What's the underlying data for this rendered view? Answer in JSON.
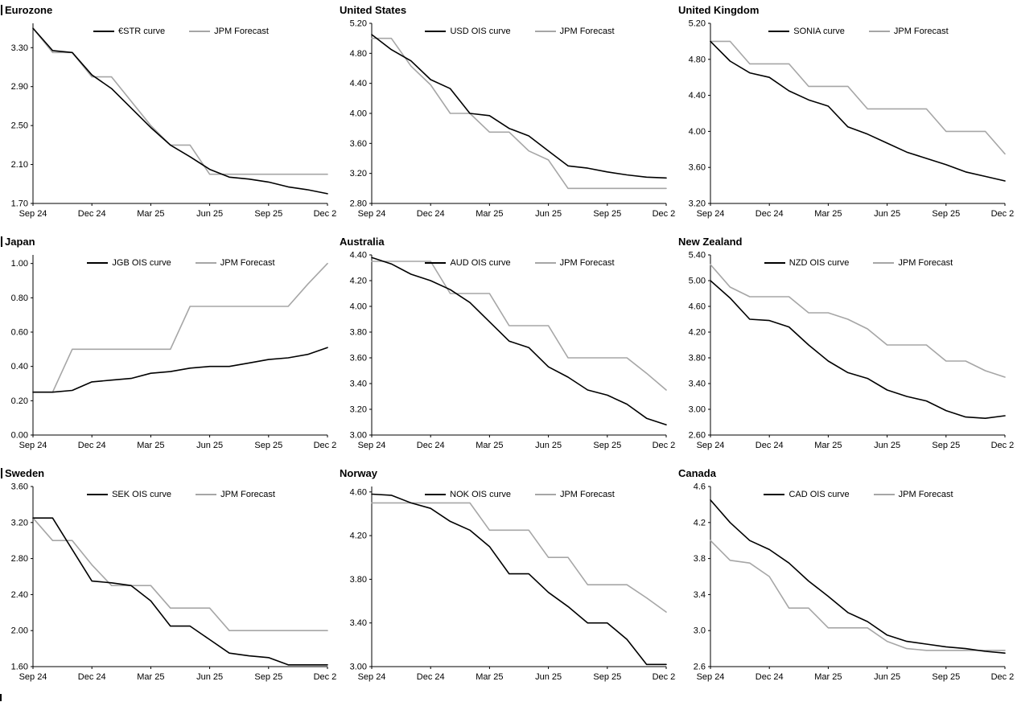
{
  "page": {
    "footer_marker": "|"
  },
  "chart_common": {
    "n_points": 16,
    "x_tick_labels": [
      "Sep 24",
      "Dec 24",
      "Mar 25",
      "Jun 25",
      "Sep 25",
      "Dec 25"
    ],
    "x_tick_indices": [
      0,
      3,
      6,
      9,
      12,
      15
    ],
    "colors": {
      "ois_curve": "#000000",
      "jpm_forecast": "#a6a6a6",
      "axis": "#000000"
    }
  },
  "chart_data": [
    {
      "type": "line",
      "title": "Eurozone",
      "title_bar": true,
      "ylim": [
        1.7,
        3.55
      ],
      "yticks": [
        1.7,
        2.1,
        2.5,
        2.9,
        3.3
      ],
      "ytick_decimals": 2,
      "legend_position": "top-center",
      "grid": false,
      "series": [
        {
          "name": "€STR curve",
          "color": "#000000",
          "values": [
            3.5,
            3.27,
            3.25,
            3.02,
            2.88,
            2.68,
            2.48,
            2.3,
            2.18,
            2.05,
            1.97,
            1.95,
            1.92,
            1.87,
            1.84,
            1.8
          ]
        },
        {
          "name": "JPM Forecast",
          "color": "#a6a6a6",
          "values": [
            3.5,
            3.25,
            3.25,
            3.0,
            3.0,
            2.75,
            2.5,
            2.3,
            2.3,
            2.0,
            2.0,
            2.0,
            2.0,
            2.0,
            2.0,
            2.0
          ]
        }
      ]
    },
    {
      "type": "line",
      "title": "United States",
      "title_bar": false,
      "ylim": [
        2.8,
        5.2
      ],
      "yticks": [
        2.8,
        3.2,
        3.6,
        4.0,
        4.4,
        4.8,
        5.2
      ],
      "ytick_decimals": 2,
      "legend_position": "top-center",
      "grid": false,
      "series": [
        {
          "name": "USD OIS curve",
          "color": "#000000",
          "values": [
            5.05,
            4.85,
            4.7,
            4.45,
            4.33,
            4.0,
            3.97,
            3.8,
            3.7,
            3.5,
            3.3,
            3.27,
            3.22,
            3.18,
            3.15,
            3.14
          ]
        },
        {
          "name": "JPM Forecast",
          "color": "#a6a6a6",
          "values": [
            5.0,
            5.0,
            4.63,
            4.38,
            4.0,
            4.0,
            3.75,
            3.75,
            3.5,
            3.38,
            3.0,
            3.0,
            3.0,
            3.0,
            3.0,
            3.0
          ]
        }
      ]
    },
    {
      "type": "line",
      "title": "United Kingdom",
      "title_bar": false,
      "ylim": [
        3.2,
        5.2
      ],
      "yticks": [
        3.2,
        3.6,
        4.0,
        4.4,
        4.8,
        5.2
      ],
      "ytick_decimals": 2,
      "legend_position": "top-center",
      "grid": false,
      "series": [
        {
          "name": "SONIA curve",
          "color": "#000000",
          "values": [
            5.0,
            4.78,
            4.65,
            4.6,
            4.45,
            4.35,
            4.28,
            4.05,
            3.97,
            3.87,
            3.77,
            3.7,
            3.63,
            3.55,
            3.5,
            3.45
          ]
        },
        {
          "name": "JPM Forecast",
          "color": "#a6a6a6",
          "values": [
            5.0,
            5.0,
            4.75,
            4.75,
            4.75,
            4.5,
            4.5,
            4.5,
            4.25,
            4.25,
            4.25,
            4.25,
            4.0,
            4.0,
            4.0,
            3.75
          ]
        }
      ]
    },
    {
      "type": "line",
      "title": "Japan",
      "title_bar": true,
      "ylim": [
        0.0,
        1.05
      ],
      "yticks": [
        0.0,
        0.2,
        0.4,
        0.6,
        0.8,
        1.0
      ],
      "ytick_decimals": 2,
      "legend_position": "top-center",
      "grid": false,
      "series": [
        {
          "name": "JGB OIS curve",
          "color": "#000000",
          "values": [
            0.25,
            0.25,
            0.26,
            0.31,
            0.32,
            0.33,
            0.36,
            0.37,
            0.39,
            0.4,
            0.4,
            0.42,
            0.44,
            0.45,
            0.47,
            0.51
          ]
        },
        {
          "name": "JPM Forecast",
          "color": "#a6a6a6",
          "values": [
            0.25,
            0.25,
            0.5,
            0.5,
            0.5,
            0.5,
            0.5,
            0.5,
            0.75,
            0.75,
            0.75,
            0.75,
            0.75,
            0.75,
            0.88,
            1.0
          ]
        }
      ]
    },
    {
      "type": "line",
      "title": "Australia",
      "title_bar": false,
      "ylim": [
        3.0,
        4.4
      ],
      "yticks": [
        3.0,
        3.2,
        3.4,
        3.6,
        3.8,
        4.0,
        4.2,
        4.4
      ],
      "ytick_decimals": 2,
      "legend_position": "top-center",
      "grid": false,
      "series": [
        {
          "name": "AUD OIS curve",
          "color": "#000000",
          "values": [
            4.38,
            4.33,
            4.25,
            4.2,
            4.13,
            4.03,
            3.88,
            3.73,
            3.68,
            3.53,
            3.45,
            3.35,
            3.31,
            3.24,
            3.13,
            3.08
          ]
        },
        {
          "name": "JPM Forecast",
          "color": "#a6a6a6",
          "values": [
            4.35,
            4.35,
            4.35,
            4.35,
            4.1,
            4.1,
            4.1,
            3.85,
            3.85,
            3.85,
            3.6,
            3.6,
            3.6,
            3.6,
            3.48,
            3.35
          ]
        }
      ]
    },
    {
      "type": "line",
      "title": "New Zealand",
      "title_bar": false,
      "ylim": [
        2.6,
        5.4
      ],
      "yticks": [
        2.6,
        3.0,
        3.4,
        3.8,
        4.2,
        4.6,
        5.0,
        5.4
      ],
      "ytick_decimals": 2,
      "legend_position": "top-center",
      "grid": false,
      "series": [
        {
          "name": "NZD OIS curve",
          "color": "#000000",
          "values": [
            5.0,
            4.73,
            4.4,
            4.38,
            4.28,
            4.0,
            3.75,
            3.57,
            3.48,
            3.3,
            3.2,
            3.13,
            2.98,
            2.88,
            2.86,
            2.9
          ]
        },
        {
          "name": "JPM Forecast",
          "color": "#a6a6a6",
          "values": [
            5.25,
            4.9,
            4.75,
            4.75,
            4.75,
            4.5,
            4.5,
            4.4,
            4.25,
            4.0,
            4.0,
            4.0,
            3.75,
            3.75,
            3.6,
            3.5
          ]
        }
      ]
    },
    {
      "type": "line",
      "title": "Sweden",
      "title_bar": true,
      "ylim": [
        1.6,
        3.6
      ],
      "yticks": [
        1.6,
        2.0,
        2.4,
        2.8,
        3.2,
        3.6
      ],
      "ytick_decimals": 2,
      "legend_position": "top-center",
      "grid": false,
      "series": [
        {
          "name": "SEK OIS curve",
          "color": "#000000",
          "values": [
            3.25,
            3.25,
            2.9,
            2.55,
            2.53,
            2.5,
            2.33,
            2.05,
            2.05,
            1.9,
            1.75,
            1.72,
            1.7,
            1.62,
            1.62,
            1.62
          ]
        },
        {
          "name": "JPM Forecast",
          "color": "#a6a6a6",
          "values": [
            3.25,
            3.0,
            3.0,
            2.73,
            2.5,
            2.5,
            2.5,
            2.25,
            2.25,
            2.25,
            2.0,
            2.0,
            2.0,
            2.0,
            2.0,
            2.0
          ]
        }
      ]
    },
    {
      "type": "line",
      "title": "Norway",
      "title_bar": false,
      "ylim": [
        3.0,
        4.65
      ],
      "yticks": [
        3.0,
        3.4,
        3.8,
        4.2,
        4.6
      ],
      "ytick_decimals": 2,
      "legend_position": "top-center",
      "grid": false,
      "series": [
        {
          "name": "NOK OIS curve",
          "color": "#000000",
          "values": [
            4.58,
            4.57,
            4.5,
            4.45,
            4.33,
            4.25,
            4.1,
            3.85,
            3.85,
            3.68,
            3.55,
            3.4,
            3.4,
            3.25,
            3.02,
            3.02
          ]
        },
        {
          "name": "JPM Forecast",
          "color": "#a6a6a6",
          "values": [
            4.5,
            4.5,
            4.5,
            4.5,
            4.5,
            4.5,
            4.25,
            4.25,
            4.25,
            4.0,
            4.0,
            3.75,
            3.75,
            3.75,
            3.63,
            3.5
          ]
        }
      ]
    },
    {
      "type": "line",
      "title": "Canada",
      "title_bar": false,
      "ylim": [
        2.6,
        4.6
      ],
      "yticks": [
        2.6,
        3.0,
        3.4,
        3.8,
        4.2,
        4.6
      ],
      "ytick_decimals": 1,
      "legend_position": "top-center",
      "grid": false,
      "series": [
        {
          "name": "CAD OIS curve",
          "color": "#000000",
          "values": [
            4.45,
            4.2,
            4.0,
            3.9,
            3.75,
            3.55,
            3.38,
            3.2,
            3.1,
            2.95,
            2.88,
            2.85,
            2.82,
            2.8,
            2.77,
            2.75
          ]
        },
        {
          "name": "JPM Forecast",
          "color": "#a6a6a6",
          "values": [
            4.0,
            3.78,
            3.75,
            3.6,
            3.25,
            3.25,
            3.03,
            3.03,
            3.03,
            2.88,
            2.8,
            2.78,
            2.78,
            2.78,
            2.78,
            2.78
          ]
        }
      ]
    }
  ]
}
